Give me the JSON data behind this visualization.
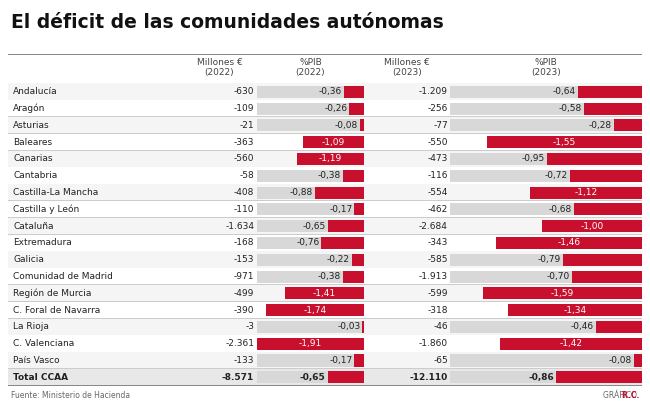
{
  "title": "El déficit de las comunidades autónomas",
  "footer_left": "Fuente: Ministerio de Hacienda",
  "footer_right_gray": "GRÁFICO ",
  "footer_right_red": "R.C.",
  "rows": [
    {
      "name": "Andalucía",
      "m2022": "-630",
      "pib2022": -0.36,
      "m2023": "-1.209",
      "pib2023": -0.64,
      "bold": false
    },
    {
      "name": "Aragón",
      "m2022": "-109",
      "pib2022": -0.26,
      "m2023": "-256",
      "pib2023": -0.58,
      "bold": false
    },
    {
      "name": "Asturias",
      "m2022": "-21",
      "pib2022": -0.08,
      "m2023": "-77",
      "pib2023": -0.28,
      "bold": false
    },
    {
      "name": "Baleares",
      "m2022": "-363",
      "pib2022": -1.09,
      "m2023": "-550",
      "pib2023": -1.55,
      "bold": false
    },
    {
      "name": "Canarias",
      "m2022": "-560",
      "pib2022": -1.19,
      "m2023": "-473",
      "pib2023": -0.95,
      "bold": false
    },
    {
      "name": "Cantabria",
      "m2022": "-58",
      "pib2022": -0.38,
      "m2023": "-116",
      "pib2023": -0.72,
      "bold": false
    },
    {
      "name": "Castilla-La Mancha",
      "m2022": "-408",
      "pib2022": -0.88,
      "m2023": "-554",
      "pib2023": -1.12,
      "bold": false
    },
    {
      "name": "Castilla y León",
      "m2022": "-110",
      "pib2022": -0.17,
      "m2023": "-462",
      "pib2023": -0.68,
      "bold": false
    },
    {
      "name": "Cataluña",
      "m2022": "-1.634",
      "pib2022": -0.65,
      "m2023": "-2.684",
      "pib2023": -1.0,
      "bold": false
    },
    {
      "name": "Extremadura",
      "m2022": "-168",
      "pib2022": -0.76,
      "m2023": "-343",
      "pib2023": -1.46,
      "bold": false
    },
    {
      "name": "Galicia",
      "m2022": "-153",
      "pib2022": -0.22,
      "m2023": "-585",
      "pib2023": -0.79,
      "bold": false
    },
    {
      "name": "Comunidad de Madrid",
      "m2022": "-971",
      "pib2022": -0.38,
      "m2023": "-1.913",
      "pib2023": -0.7,
      "bold": false
    },
    {
      "name": "Región de Murcia",
      "m2022": "-499",
      "pib2022": -1.41,
      "m2023": "-599",
      "pib2023": -1.59,
      "bold": false
    },
    {
      "name": "C. Foral de Navarra",
      "m2022": "-390",
      "pib2022": -1.74,
      "m2023": "-318",
      "pib2023": -1.34,
      "bold": false
    },
    {
      "name": "La Rioja",
      "m2022": "-3",
      "pib2022": -0.03,
      "m2023": "-46",
      "pib2023": -0.46,
      "bold": false
    },
    {
      "name": "C. Valenciana",
      "m2022": "-2.361",
      "pib2022": -1.91,
      "m2023": "-1.860",
      "pib2023": -1.42,
      "bold": false
    },
    {
      "name": "País Vasco",
      "m2022": "-133",
      "pib2022": -0.17,
      "m2023": "-65",
      "pib2023": -0.08,
      "bold": false
    },
    {
      "name": "Total CCAA",
      "m2022": "-8.571",
      "pib2022": -0.65,
      "m2023": "-12.110",
      "pib2023": -0.86,
      "bold": true
    }
  ],
  "bar_max_abs": 1.91,
  "bg_color": "#ffffff",
  "bar_red": "#c8102e",
  "bar_lightgray": "#d8d8d8",
  "title_color": "#111111",
  "text_dark": "#222222",
  "header_color": "#444444",
  "sep_color": "#cccccc",
  "heavy_line_color": "#888888",
  "row_alt_color": "#f5f5f5",
  "row_white_color": "#ffffff",
  "total_row_color": "#e8e8e8",
  "threshold": 1.0
}
